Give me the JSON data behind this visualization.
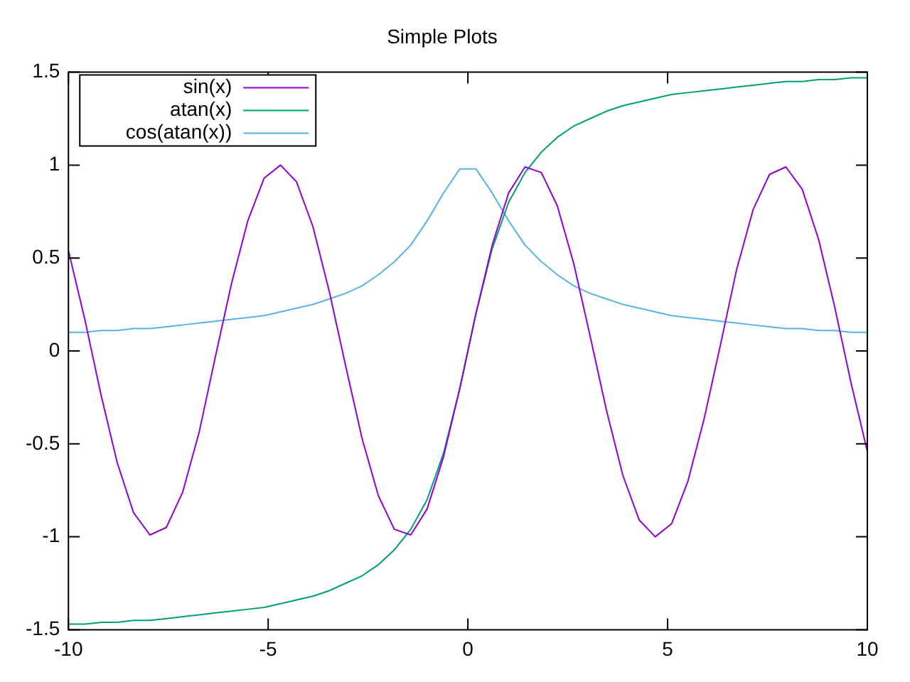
{
  "chart_data": {
    "type": "line",
    "title": "Simple Plots",
    "x": [
      -10,
      -9.59,
      -9.18,
      -8.78,
      -8.37,
      -7.96,
      -7.55,
      -7.14,
      -6.73,
      -6.33,
      -5.92,
      -5.51,
      -5.1,
      -4.69,
      -4.29,
      -3.88,
      -3.47,
      -3.06,
      -2.65,
      -2.24,
      -1.84,
      -1.43,
      -1.02,
      -0.61,
      -0.2,
      0.2,
      0.61,
      1.02,
      1.43,
      1.84,
      2.24,
      2.65,
      3.06,
      3.47,
      3.88,
      4.29,
      4.69,
      5.1,
      5.51,
      5.92,
      6.33,
      6.73,
      7.14,
      7.55,
      7.96,
      8.37,
      8.78,
      9.18,
      9.59,
      10
    ],
    "series": [
      {
        "name": "sin(x)",
        "color": "#9400d3",
        "values": [
          0.54,
          0.17,
          -0.24,
          -0.6,
          -0.87,
          -0.99,
          -0.95,
          -0.76,
          -0.44,
          -0.04,
          0.36,
          0.7,
          0.93,
          1,
          0.91,
          0.67,
          0.32,
          -0.08,
          -0.47,
          -0.78,
          -0.96,
          -0.99,
          -0.85,
          -0.57,
          -0.2,
          0.2,
          0.57,
          0.85,
          0.99,
          0.96,
          0.78,
          0.47,
          0.08,
          -0.32,
          -0.67,
          -0.91,
          -1,
          -0.93,
          -0.7,
          -0.36,
          0.04,
          0.44,
          0.76,
          0.95,
          0.99,
          0.87,
          0.6,
          0.24,
          -0.17,
          -0.54
        ]
      },
      {
        "name": "atan(x)",
        "color": "#009e73",
        "values": [
          -1.47,
          -1.47,
          -1.46,
          -1.46,
          -1.45,
          -1.45,
          -1.44,
          -1.43,
          -1.42,
          -1.41,
          -1.4,
          -1.39,
          -1.38,
          -1.36,
          -1.34,
          -1.32,
          -1.29,
          -1.25,
          -1.21,
          -1.15,
          -1.07,
          -0.96,
          -0.8,
          -0.55,
          -0.2,
          0.2,
          0.55,
          0.8,
          0.96,
          1.07,
          1.15,
          1.21,
          1.25,
          1.29,
          1.32,
          1.34,
          1.36,
          1.38,
          1.39,
          1.4,
          1.41,
          1.42,
          1.43,
          1.44,
          1.45,
          1.45,
          1.46,
          1.46,
          1.47,
          1.47
        ]
      },
      {
        "name": "cos(atan(x))",
        "color": "#56b4e9",
        "values": [
          0.1,
          0.1,
          0.11,
          0.11,
          0.12,
          0.12,
          0.13,
          0.14,
          0.15,
          0.16,
          0.17,
          0.18,
          0.19,
          0.21,
          0.23,
          0.25,
          0.28,
          0.31,
          0.35,
          0.41,
          0.48,
          0.57,
          0.7,
          0.85,
          0.98,
          0.98,
          0.85,
          0.7,
          0.57,
          0.48,
          0.41,
          0.35,
          0.31,
          0.28,
          0.25,
          0.23,
          0.21,
          0.19,
          0.18,
          0.17,
          0.16,
          0.15,
          0.14,
          0.13,
          0.12,
          0.12,
          0.11,
          0.11,
          0.1,
          0.1
        ]
      }
    ],
    "xlim": [
      -10,
      10
    ],
    "xticks": [
      -10,
      -5,
      0,
      5,
      10
    ],
    "ylim": [
      -1.5,
      1.5
    ],
    "yticks": [
      -1.5,
      -1,
      -0.5,
      0,
      0.5,
      1,
      1.5
    ],
    "legend": "top left",
    "marker": "none",
    "line_style": "solid"
  }
}
